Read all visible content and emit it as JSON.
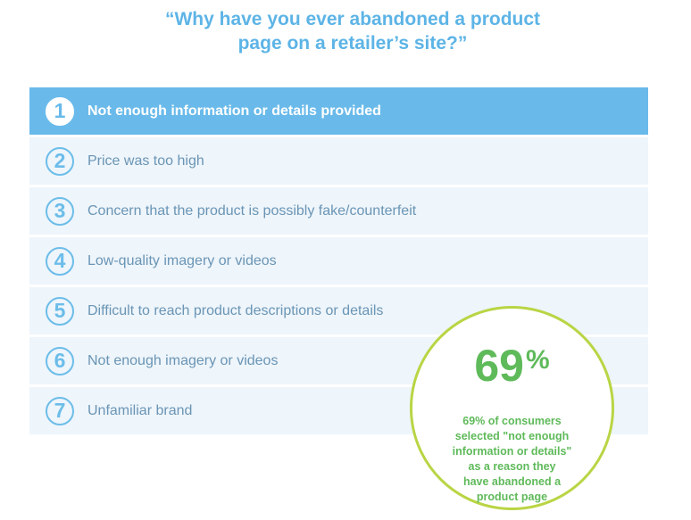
{
  "header": {
    "title_line1": "“Why have you ever abandoned a product",
    "title_line2": "page on a retailer’s site?”"
  },
  "reasons": [
    {
      "rank": "1",
      "label": "Not enough information or details provided"
    },
    {
      "rank": "2",
      "label": "Price was too high"
    },
    {
      "rank": "3",
      "label": "Concern that the product is possibly fake/counterfeit"
    },
    {
      "rank": "4",
      "label": "Low-quality imagery or videos"
    },
    {
      "rank": "5",
      "label": "Difficult to reach product descriptions or details"
    },
    {
      "rank": "6",
      "label": "Not enough imagery or videos"
    },
    {
      "rank": "7",
      "label": "Unfamiliar brand"
    }
  ],
  "callout": {
    "percent_value": "69",
    "percent_sign": "%",
    "lines": [
      "69% of consumers",
      "selected \"not enough",
      "information or details\"",
      "as a reason they",
      "have abandoned a",
      "product page"
    ]
  },
  "colors": {
    "title": "#5db4e6",
    "highlight_row": "#69baea",
    "row_background": "#eef5fb",
    "row_text": "#6a95b5",
    "callout_border": "#b9d544",
    "callout_text": "#5fba5a"
  },
  "icons": [
    "number-circle-icon"
  ]
}
